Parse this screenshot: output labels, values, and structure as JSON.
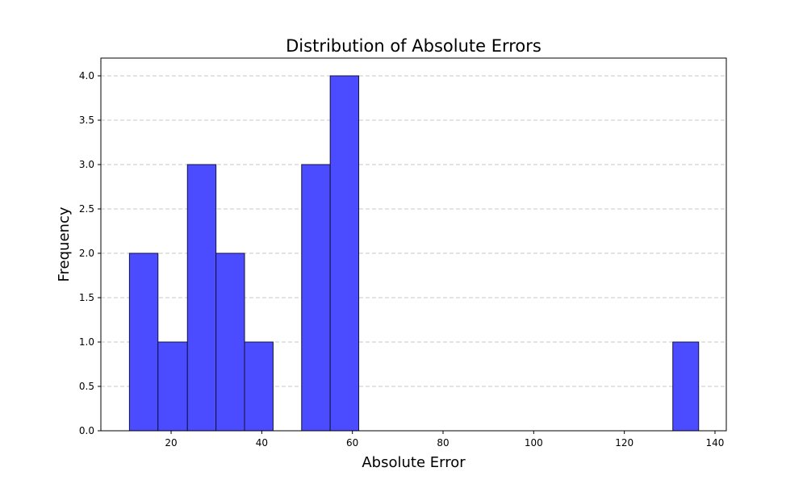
{
  "chart_data": {
    "type": "bar",
    "title": "Distribution of Absolute Errors",
    "xlabel": "Absolute Error",
    "ylabel": "Frequency",
    "bin_edges": [
      10.8,
      17.1,
      23.6,
      29.9,
      36.2,
      42.5,
      48.8,
      55.1,
      61.4,
      67.7,
      74.0,
      80.3,
      86.6,
      92.9,
      99.2,
      105.5,
      111.8,
      118.1,
      124.4,
      130.7,
      136.4
    ],
    "values": [
      2,
      1,
      3,
      2,
      1,
      0,
      3,
      4,
      0,
      0,
      0,
      0,
      0,
      0,
      0,
      0,
      0,
      0,
      0,
      1
    ],
    "xlim": [
      4.5,
      142.5
    ],
    "ylim": [
      0,
      4.2
    ],
    "xticks": [
      20,
      40,
      60,
      80,
      100,
      120,
      140
    ],
    "xtick_labels": [
      "20",
      "40",
      "60",
      "80",
      "100",
      "120",
      "140"
    ],
    "yticks": [
      0,
      0.5,
      1,
      1.5,
      2,
      2.5,
      3,
      3.5,
      4
    ],
    "ytick_labels": [
      "0.0",
      "0.5",
      "1.0",
      "1.5",
      "2.0",
      "2.5",
      "3.0",
      "3.5",
      "4.0"
    ],
    "grid": "y-dashed",
    "bar_color": "#4b4bff",
    "edge_color": "#14143a",
    "grid_color": "#c8c8c8"
  }
}
